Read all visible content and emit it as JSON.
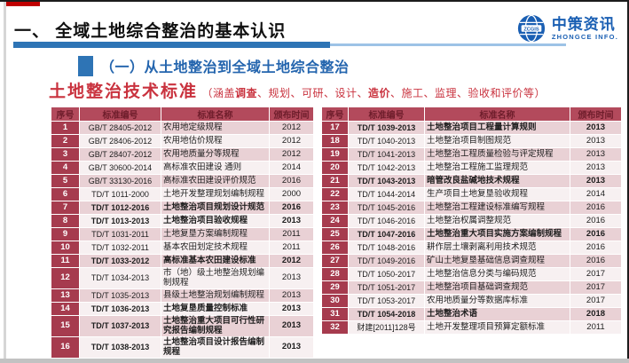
{
  "header": {
    "title": "一、 全域土地综合整治的基本认识"
  },
  "logo": {
    "name": "中策资讯",
    "subname": "ZHONGCE INFO.",
    "globe_text": "ZCGIS"
  },
  "section": {
    "label": "（一）从土地整治到全域土地综合整治"
  },
  "standards": {
    "heading": "土地整治技术标准",
    "note_segments": [
      {
        "text": "（涵盖",
        "bold": false
      },
      {
        "text": "调查",
        "bold": true
      },
      {
        "text": "、规划、可研、设计、",
        "bold": false
      },
      {
        "text": "造价",
        "bold": true
      },
      {
        "text": "、施工、监理、验收和评价等）",
        "bold": false
      }
    ]
  },
  "colors": {
    "accent_red": "#C00000",
    "title_underline_blue": "#2E74B5",
    "title_underline_light": "#9DC3E6",
    "logo_blue": "#1A5FB3",
    "text_red": "#C9323E",
    "table_header_bg": "#B34A5C",
    "table_header_text": "#6E1D2B",
    "index_cell_bg": "#A63B4E",
    "row_pink": "#E9D1D5",
    "row_light": "#F7F0F1"
  },
  "table_headers": [
    "序号",
    "标准编号",
    "标准名称",
    "颁布时间"
  ],
  "left_table": [
    {
      "no": "1",
      "code": "GB/T 28405-2012",
      "name": "农用地定级规程",
      "year": "2012",
      "bold": false
    },
    {
      "no": "2",
      "code": "GB/T 28406-2012",
      "name": "农用地估价规程",
      "year": "2012",
      "bold": false
    },
    {
      "no": "3",
      "code": "GB/T 28407-2012",
      "name": "农用地质量分等规程",
      "year": "2012",
      "bold": false
    },
    {
      "no": "4",
      "code": "GB/T 30600-2014",
      "name": "高标准农田建设 通则",
      "year": "2014",
      "bold": false
    },
    {
      "no": "5",
      "code": "GB/T 33130-2016",
      "name": "高标准农田建设评价规范",
      "year": "2016",
      "bold": false
    },
    {
      "no": "6",
      "code": "TD/T 1011-2000",
      "name": "土地开发整理规划编制规程",
      "year": "2000",
      "bold": false
    },
    {
      "no": "7",
      "code": "TD/T 1012-2016",
      "name": "土地整治项目规划设计规范",
      "year": "2016",
      "bold": true
    },
    {
      "no": "8",
      "code": "TD/T 1013-2013",
      "name": "土地整治项目验收规程",
      "year": "2013",
      "bold": true
    },
    {
      "no": "9",
      "code": "TD/T 1031-2011",
      "name": "土地复垦方案编制规程",
      "year": "2011",
      "bold": false
    },
    {
      "no": "10",
      "code": "TD/T 1032-2011",
      "name": "基本农田划定技术规程",
      "year": "2011",
      "bold": false
    },
    {
      "no": "11",
      "code": "TD/T 1033-2012",
      "name": "高标准基本农田建设标准",
      "year": "2012",
      "bold": true
    },
    {
      "no": "12",
      "code": "TD/T 1034-2013",
      "name": "市（地）级土地整治规划编制规程",
      "year": "2013",
      "bold": false
    },
    {
      "no": "13",
      "code": "TD/T 1035-2013",
      "name": "县级土地整治规划编制规程",
      "year": "2013",
      "bold": false
    },
    {
      "no": "14",
      "code": "TD/T 1036-2013",
      "name": "土地复垦质量控制标准",
      "year": "2013",
      "bold": true
    },
    {
      "no": "15",
      "code": "TD/T 1037-2013",
      "name": "土地整治重大项目可行性研究报告编制规程",
      "year": "2013",
      "bold": true
    },
    {
      "no": "16",
      "code": "TD/T 1038-2013",
      "name": "土地整治项目设计报告编制规程",
      "year": "2013",
      "bold": true
    }
  ],
  "right_table": [
    {
      "no": "17",
      "code": "TD/T 1039-2013",
      "name": "土地整治项目工程量计算规则",
      "year": "2013",
      "bold": true
    },
    {
      "no": "18",
      "code": "TD/T 1040-2013",
      "name": "土地整治项目制图规范",
      "year": "2013",
      "bold": false
    },
    {
      "no": "19",
      "code": "TD/T 1041-2013",
      "name": "土地整治工程质量检验与评定规程",
      "year": "2013",
      "bold": false
    },
    {
      "no": "20",
      "code": "TD/T 1042-2013",
      "name": "土地整治工程施工监理规范",
      "year": "2013",
      "bold": false
    },
    {
      "no": "21",
      "code": "TD/T 1043-2013",
      "name": "暗管改良盐碱地技术规程",
      "year": "2013",
      "bold": true
    },
    {
      "no": "22",
      "code": "TD/T 1044-2014",
      "name": "生产项目土地复垦验收规程",
      "year": "2014",
      "bold": false
    },
    {
      "no": "23",
      "code": "TD/T 1045-2016",
      "name": "土地整治工程建设标准编写规程",
      "year": "2016",
      "bold": false
    },
    {
      "no": "24",
      "code": "TD/T 1046-2016",
      "name": "土地整治权属调整规范",
      "year": "2016",
      "bold": false
    },
    {
      "no": "25",
      "code": "TD/T 1047-2016",
      "name": "土地整治重大项目实施方案编制规程",
      "year": "2016",
      "bold": true
    },
    {
      "no": "26",
      "code": "TD/T 1048-2016",
      "name": "耕作层土壤剥离利用技术规范",
      "year": "2016",
      "bold": false
    },
    {
      "no": "27",
      "code": "TD/T 1049-2016",
      "name": "矿山土地复垦基础信息调查规程",
      "year": "2016",
      "bold": false
    },
    {
      "no": "28",
      "code": "TD/T 1050-2017",
      "name": "土地整治信息分类与编码规范",
      "year": "2017",
      "bold": false
    },
    {
      "no": "29",
      "code": "TD/T 1051-2017",
      "name": "土地整治项目基础调查规范",
      "year": "2017",
      "bold": false
    },
    {
      "no": "30",
      "code": "TD/T 1053-2017",
      "name": "农用地质量分等数据库标准",
      "year": "2017",
      "bold": false
    },
    {
      "no": "31",
      "code": "TD/T 1054-2018",
      "name": "土地整治术语",
      "year": "2018",
      "bold": true
    },
    {
      "no": "32",
      "code": "财建[2011]128号",
      "name": "土地开发整理项目预算定额标准",
      "year": "2011",
      "bold": false
    }
  ]
}
